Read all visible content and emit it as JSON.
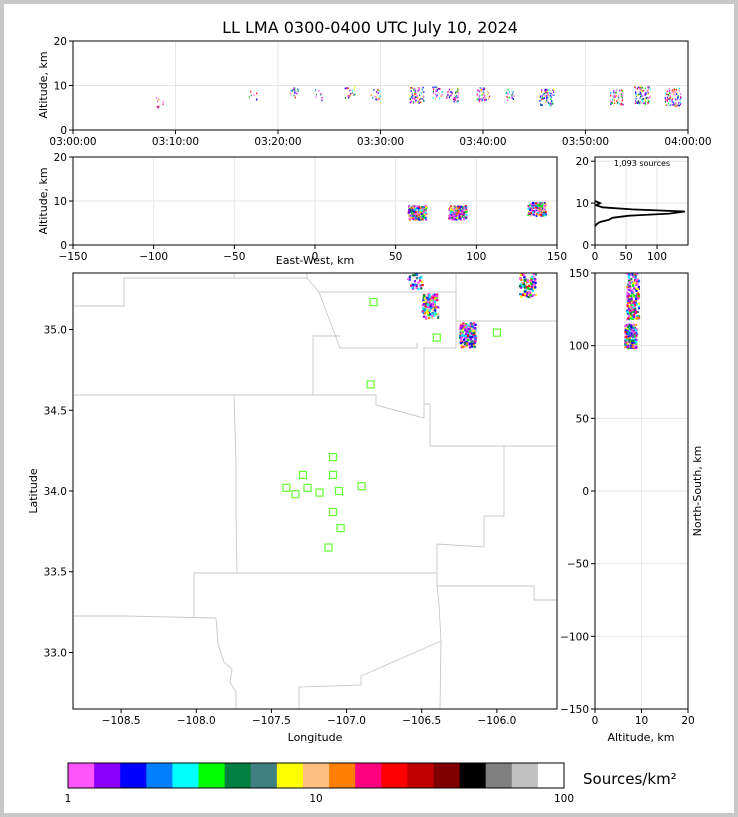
{
  "title": "LL LMA 0300-0400 UTC July 10, 2024",
  "chart_data": [
    {
      "id": "alt_time",
      "type": "scatter",
      "ylabel": "Altitude, km",
      "xlim": [
        "03:00:00",
        "04:00:00"
      ],
      "ylim": [
        0,
        20
      ],
      "xticks": [
        "03:00:00",
        "03:10:00",
        "03:20:00",
        "03:30:00",
        "03:40:00",
        "03:50:00",
        "04:00:00"
      ],
      "yticks": [
        "0",
        "10",
        "20"
      ],
      "clusters": [
        {
          "t_min": 8.5,
          "alt_km": 6.2,
          "density": 1
        },
        {
          "t_min": 17.5,
          "alt_km": 8.0,
          "density": 1
        },
        {
          "t_min": 21.5,
          "alt_km": 8.5,
          "density": 2
        },
        {
          "t_min": 24.0,
          "alt_km": 8.0,
          "density": 1
        },
        {
          "t_min": 27.0,
          "alt_km": 8.5,
          "density": 3
        },
        {
          "t_min": 29.5,
          "alt_km": 8.0,
          "density": 2
        },
        {
          "t_min": 33.5,
          "alt_km": 8.0,
          "density": 8
        },
        {
          "t_min": 35.5,
          "alt_km": 8.5,
          "density": 3
        },
        {
          "t_min": 37.0,
          "alt_km": 8.0,
          "density": 5
        },
        {
          "t_min": 40.0,
          "alt_km": 8.0,
          "density": 6
        },
        {
          "t_min": 42.5,
          "alt_km": 8.0,
          "density": 2
        },
        {
          "t_min": 46.2,
          "alt_km": 7.5,
          "density": 8
        },
        {
          "t_min": 53.0,
          "alt_km": 7.5,
          "density": 6
        },
        {
          "t_min": 55.5,
          "alt_km": 8.0,
          "density": 10
        },
        {
          "t_min": 58.5,
          "alt_km": 7.5,
          "density": 10
        }
      ]
    },
    {
      "id": "alt_ew",
      "type": "scatter",
      "ylabel": "Altitude, km",
      "xlabel": "East-West, km",
      "xlim": [
        -150,
        150
      ],
      "ylim": [
        0,
        20
      ],
      "xticks": [
        "−150",
        "−100",
        "−50",
        "0",
        "50",
        "100",
        "150"
      ],
      "yticks": [
        "0",
        "10",
        "20"
      ],
      "clusters": [
        {
          "x_km": 63,
          "alt_km": 7.5,
          "density": 10
        },
        {
          "x_km": 88,
          "alt_km": 7.5,
          "density": 10
        },
        {
          "x_km": 137,
          "alt_km": 8.3,
          "density": 6
        }
      ]
    },
    {
      "id": "histogram",
      "type": "line",
      "annotation": "1,093 sources",
      "xlim": [
        0,
        150
      ],
      "ylim": [
        0,
        21
      ],
      "xticks": [
        "0",
        "50",
        "100"
      ],
      "yticks": [
        "0",
        "10",
        "20"
      ],
      "profile": [
        {
          "alt": 4.5,
          "count": 0
        },
        {
          "alt": 5,
          "count": 3
        },
        {
          "alt": 5.5,
          "count": 8
        },
        {
          "alt": 6,
          "count": 22
        },
        {
          "alt": 6.5,
          "count": 28
        },
        {
          "alt": 7,
          "count": 55
        },
        {
          "alt": 7.5,
          "count": 120
        },
        {
          "alt": 8,
          "count": 145
        },
        {
          "alt": 8.5,
          "count": 60
        },
        {
          "alt": 9,
          "count": 12
        },
        {
          "alt": 9.5,
          "count": 2
        },
        {
          "alt": 10,
          "count": 8
        },
        {
          "alt": 10.5,
          "count": 0
        }
      ]
    },
    {
      "id": "plan_view",
      "type": "scatter",
      "xlabel": "Longitude",
      "ylabel": "Latitude",
      "xlim": [
        -108.82,
        -105.6
      ],
      "ylim": [
        32.65,
        35.35
      ],
      "xticks": [
        "−108.5",
        "−108.0",
        "−107.5",
        "−107.0",
        "−106.5",
        "−106.0"
      ],
      "yticks": [
        "33.0",
        "33.5",
        "34.0",
        "34.5",
        "35.0"
      ],
      "clusters": [
        {
          "lon": -105.8,
          "lat": 35.28,
          "density": 6
        },
        {
          "lon": -106.45,
          "lat": 35.15,
          "density": 8
        },
        {
          "lon": -106.2,
          "lat": 34.97,
          "density": 10
        },
        {
          "lon": -106.55,
          "lat": 35.33,
          "density": 3
        }
      ],
      "stations": [
        {
          "lon": -106.82,
          "lat": 35.17
        },
        {
          "lon": -106.4,
          "lat": 34.95
        },
        {
          "lon": -106.0,
          "lat": 34.98
        },
        {
          "lon": -106.84,
          "lat": 34.66
        },
        {
          "lon": -107.09,
          "lat": 34.21
        },
        {
          "lon": -107.29,
          "lat": 34.1
        },
        {
          "lon": -107.09,
          "lat": 34.1
        },
        {
          "lon": -107.4,
          "lat": 34.02
        },
        {
          "lon": -107.26,
          "lat": 34.02
        },
        {
          "lon": -107.34,
          "lat": 33.98
        },
        {
          "lon": -107.18,
          "lat": 33.99
        },
        {
          "lon": -107.05,
          "lat": 34.0
        },
        {
          "lon": -106.9,
          "lat": 34.03
        },
        {
          "lon": -107.09,
          "lat": 33.87
        },
        {
          "lon": -107.04,
          "lat": 33.77
        },
        {
          "lon": -107.12,
          "lat": 33.65
        }
      ]
    },
    {
      "id": "ns_alt",
      "type": "scatter",
      "xlabel": "Altitude, km",
      "ylabel": "North-South, km",
      "xlim": [
        0,
        20
      ],
      "ylim": [
        -150,
        150
      ],
      "xticks": [
        "0",
        "10",
        "20"
      ],
      "yticks": [
        "−150",
        "−100",
        "−50",
        "0",
        "50",
        "100",
        "150"
      ],
      "clusters": [
        {
          "alt_km": 7.5,
          "ns_km": 107,
          "density": 10
        },
        {
          "alt_km": 8,
          "ns_km": 127,
          "density": 8
        },
        {
          "alt_km": 8,
          "ns_km": 143,
          "density": 5
        }
      ]
    },
    {
      "id": "colorbar",
      "type": "heatmap",
      "label": "Sources/km²",
      "ticks": [
        "1",
        "10",
        "100"
      ],
      "colors": [
        "#ff55ff",
        "#8b00ff",
        "#0000ff",
        "#0080ff",
        "#00ffff",
        "#00ff00",
        "#008040",
        "#408080",
        "#ffff00",
        "#ffc080",
        "#ff8000",
        "#ff0080",
        "#ff0000",
        "#c00000",
        "#800000",
        "#000000",
        "#808080",
        "#c0c0c0",
        "#ffffff"
      ]
    }
  ]
}
